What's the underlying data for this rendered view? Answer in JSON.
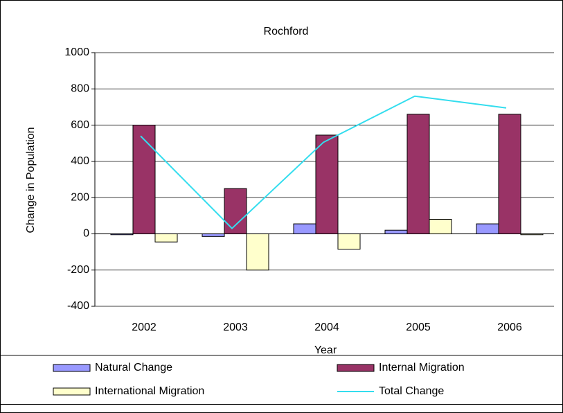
{
  "chart_data": {
    "type": "bar",
    "title": "Rochford",
    "x_label": "Year",
    "y_label": "Change in Population",
    "categories": [
      "2002",
      "2003",
      "2004",
      "2005",
      "2006"
    ],
    "series": [
      {
        "name": "Natural Change",
        "color": "#9999ff",
        "values": [
          -5,
          -15,
          55,
          20,
          55
        ]
      },
      {
        "name": "Internal Migration",
        "color": "#993366",
        "values": [
          600,
          250,
          545,
          660,
          660
        ]
      },
      {
        "name": "International Migration",
        "color": "#ffffcc",
        "values": [
          -45,
          -200,
          -85,
          80,
          -5
        ]
      },
      {
        "name": "Total Change",
        "color": "#33ddee",
        "type": "line",
        "values": [
          540,
          30,
          505,
          760,
          695
        ]
      }
    ],
    "ylim": [
      -400,
      1000
    ],
    "yticks": [
      -400,
      -200,
      0,
      200,
      400,
      600,
      800,
      1000
    ],
    "grid": true,
    "legend": "bottom"
  }
}
